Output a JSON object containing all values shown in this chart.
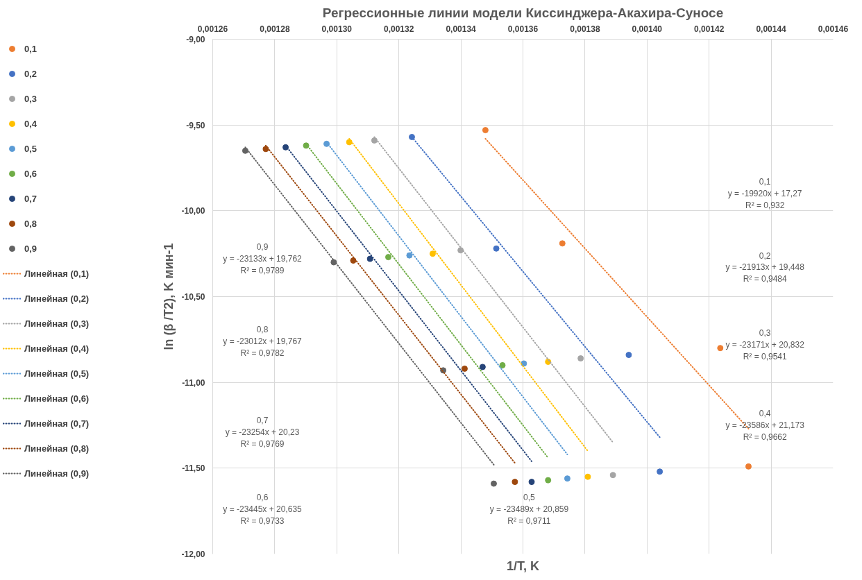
{
  "chart_data": {
    "type": "scatter",
    "title": "Регрессионные линии модели Киссинджера-Акахира-Суносе",
    "xlabel": "1/T, K",
    "ylabel": "ln (β /T2), K мин-1",
    "xlim": [
      0.00126,
      0.00146
    ],
    "ylim": [
      -12,
      -9
    ],
    "xticks": [
      {
        "value": 0.00126,
        "label": "0,00126"
      },
      {
        "value": 0.00128,
        "label": "0,00128"
      },
      {
        "value": 0.0013,
        "label": "0,00130"
      },
      {
        "value": 0.00132,
        "label": "0,00132"
      },
      {
        "value": 0.00134,
        "label": "0,00134"
      },
      {
        "value": 0.00136,
        "label": "0,00136"
      },
      {
        "value": 0.00138,
        "label": "0,00138"
      },
      {
        "value": 0.0014,
        "label": "0,00140"
      },
      {
        "value": 0.00142,
        "label": "0,00142"
      },
      {
        "value": 0.00144,
        "label": "0,00144"
      },
      {
        "value": 0.00146,
        "label": "0,00146"
      }
    ],
    "yticks": [
      {
        "value": -9,
        "label": "-9,00"
      },
      {
        "value": -9.5,
        "label": "-9,50"
      },
      {
        "value": -10,
        "label": "-10,00"
      },
      {
        "value": -10.5,
        "label": "-10,50"
      },
      {
        "value": -11,
        "label": "-11,00"
      },
      {
        "value": -11.5,
        "label": "-11,50"
      },
      {
        "value": -12,
        "label": "-12,00"
      }
    ],
    "grid": true,
    "legend": "left",
    "marker": "circle",
    "line_style": "dotted",
    "series": [
      {
        "name": "0,1",
        "color": "#ed7d31",
        "x": [
          0.0013479,
          0.0013727,
          0.0014236,
          0.0014327
        ],
        "values": [
          -9.53,
          -10.19,
          -10.8,
          -11.49
        ]
      },
      {
        "name": "0,2",
        "color": "#4472c4",
        "x": [
          0.0013242,
          0.0013514,
          0.0013941,
          0.0014041
        ],
        "values": [
          -9.57,
          -10.22,
          -10.84,
          -11.52
        ]
      },
      {
        "name": "0,3",
        "color": "#a5a5a5",
        "x": [
          0.0013121,
          0.0013399,
          0.0013786,
          0.001389
        ],
        "values": [
          -9.59,
          -10.23,
          -10.86,
          -11.54
        ]
      },
      {
        "name": "0,4",
        "color": "#ffc000",
        "x": [
          0.001304,
          0.0013309,
          0.0013681,
          0.0013809
        ],
        "values": [
          -9.6,
          -10.25,
          -10.88,
          -11.55
        ]
      },
      {
        "name": "0,5",
        "color": "#5b9bd5",
        "x": [
          0.0012967,
          0.0013234,
          0.0013603,
          0.0013743
        ],
        "values": [
          -9.61,
          -10.26,
          -10.89,
          -11.56
        ]
      },
      {
        "name": "0,6",
        "color": "#70ad47",
        "x": [
          0.0012901,
          0.0013166,
          0.0013534,
          0.0013681
        ],
        "values": [
          -9.62,
          -10.27,
          -10.9,
          -11.57
        ]
      },
      {
        "name": "0,7",
        "color": "#264478",
        "x": [
          0.0012835,
          0.0013107,
          0.001347,
          0.0013628
        ],
        "values": [
          -9.63,
          -10.28,
          -10.91,
          -11.58
        ]
      },
      {
        "name": "0,8",
        "color": "#9e480e",
        "x": [
          0.0012771,
          0.0013053,
          0.0013412,
          0.0013574
        ],
        "values": [
          -9.64,
          -10.29,
          -10.92,
          -11.58
        ]
      },
      {
        "name": "0,9",
        "color": "#636363",
        "x": [
          0.0012705,
          0.001299,
          0.0013343,
          0.0013506
        ],
        "values": [
          -9.65,
          -10.3,
          -10.93,
          -11.59
        ]
      },
      {
        "name": "Линейная (0,1)",
        "type": "line",
        "marker": "none",
        "color": "#ed7d31",
        "x": [
          0.0013479,
          0.0014327
        ],
        "values": [
          -9.58,
          -11.27
        ]
      },
      {
        "name": "Линейная (0,2)",
        "type": "line",
        "marker": "none",
        "color": "#4472c4",
        "x": [
          0.0013242,
          0.0014041
        ],
        "values": [
          -9.57,
          -11.32
        ]
      },
      {
        "name": "Линейная (0,3)",
        "type": "line",
        "marker": "none",
        "color": "#a5a5a5",
        "x": [
          0.0013121,
          0.001389
        ],
        "values": [
          -9.57,
          -11.35
        ]
      },
      {
        "name": "Линейная (0,4)",
        "type": "line",
        "marker": "none",
        "color": "#ffc000",
        "x": [
          0.001304,
          0.0013809
        ],
        "values": [
          -9.58,
          -11.4
        ]
      },
      {
        "name": "Линейная (0,5)",
        "type": "line",
        "marker": "none",
        "color": "#5b9bd5",
        "x": [
          0.0012967,
          0.0013743
        ],
        "values": [
          -9.6,
          -11.42
        ]
      },
      {
        "name": "Линейная (0,6)",
        "type": "line",
        "marker": "none",
        "color": "#70ad47",
        "x": [
          0.0012901,
          0.0013681
        ],
        "values": [
          -9.61,
          -11.44
        ]
      },
      {
        "name": "Линейная (0,7)",
        "type": "line",
        "marker": "none",
        "color": "#264478",
        "x": [
          0.0012835,
          0.0013628
        ],
        "values": [
          -9.62,
          -11.46
        ]
      },
      {
        "name": "Линейная (0,8)",
        "type": "line",
        "marker": "none",
        "color": "#9e480e",
        "x": [
          0.0012771,
          0.0013574
        ],
        "values": [
          -9.62,
          -11.47
        ]
      },
      {
        "name": "Линейная (0,9)",
        "type": "line",
        "marker": "none",
        "color": "#636363",
        "x": [
          0.0012705,
          0.0013506
        ],
        "values": [
          -9.63,
          -11.48
        ]
      }
    ],
    "annotations": [
      "0,1\ny = -19920x + 17,27\nR² = 0,932",
      "0,2\ny = -21913x + 19,448\nR² = 0,9484",
      "0,3\ny = -23171x + 20,832\nR² = 0,9541",
      "0,4\ny = -23586x + 21,173\nR² = 0,9662",
      "0,5\ny = -23489x + 20,859\nR² = 0,9711",
      "0,6\ny = -23445x + 20,635\nR² = 0,9733",
      "0,7\ny = -23254x + 20,23\nR² = 0,9769",
      "0,8\ny = -23012x + 19,767\nR² = 0,9782",
      "0,9\ny = -23133x + 19,762\nR² = 0,9789"
    ]
  }
}
